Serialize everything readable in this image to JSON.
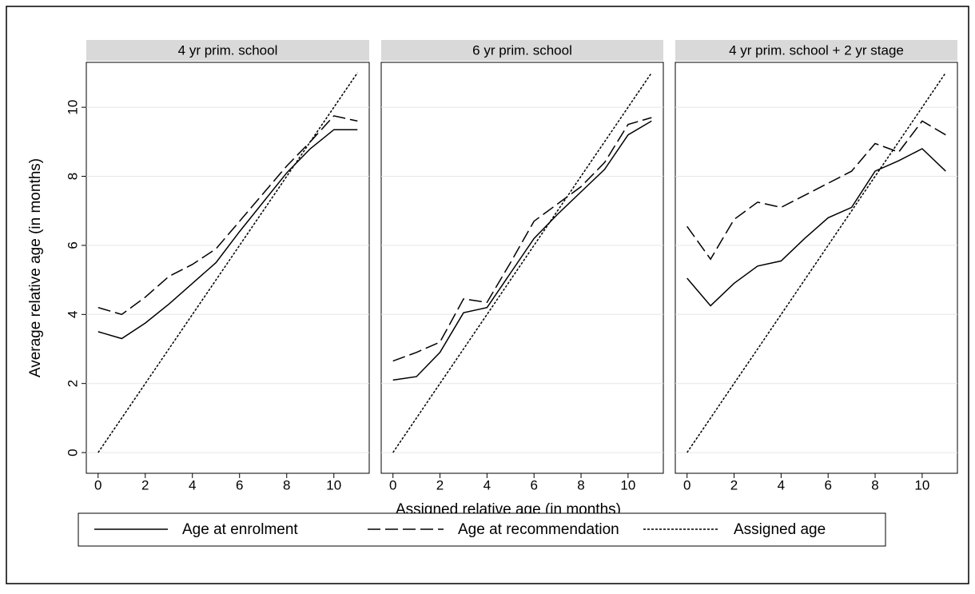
{
  "chart_data": [
    {
      "type": "line",
      "title": "4 yr prim. school",
      "ylabel": "Average relative age (in months)",
      "x": [
        0,
        1,
        2,
        3,
        4,
        5,
        6,
        7,
        8,
        9,
        10,
        11
      ],
      "xlim": [
        -0.5,
        11.5
      ],
      "xticks": [
        0,
        2,
        4,
        6,
        8,
        10
      ],
      "ylim": [
        -0.6,
        11.3
      ],
      "yticks": [
        0,
        2,
        4,
        6,
        8,
        10
      ],
      "grid": true,
      "series": [
        {
          "name": "Age at enrolment",
          "color": "#000000",
          "dash": "solid",
          "values": [
            3.5,
            3.3,
            3.75,
            4.3,
            4.9,
            5.5,
            6.4,
            7.25,
            8.1,
            8.8,
            9.35,
            9.35
          ]
        },
        {
          "name": "Age at recommendation",
          "color": "#000000",
          "dash": "long",
          "values": [
            4.2,
            4.0,
            4.5,
            5.1,
            5.45,
            5.9,
            6.7,
            7.5,
            8.3,
            9.0,
            9.75,
            9.6
          ]
        },
        {
          "name": "Assigned age",
          "color": "#000000",
          "dash": "short",
          "values": [
            0,
            1,
            2,
            3,
            4,
            5,
            6,
            7,
            8,
            9,
            10,
            11
          ]
        }
      ]
    },
    {
      "type": "line",
      "title": "6 yr prim. school",
      "xlabel": "Assigned relative age (in months)",
      "x": [
        0,
        1,
        2,
        3,
        4,
        5,
        6,
        7,
        8,
        9,
        10,
        11
      ],
      "xlim": [
        -0.5,
        11.5
      ],
      "xticks": [
        0,
        2,
        4,
        6,
        8,
        10
      ],
      "ylim": [
        -0.6,
        11.3
      ],
      "yticks": [
        0,
        2,
        4,
        6,
        8,
        10
      ],
      "grid": true,
      "series": [
        {
          "name": "Age at enrolment",
          "color": "#000000",
          "dash": "solid",
          "values": [
            2.1,
            2.2,
            2.9,
            4.05,
            4.2,
            5.2,
            6.2,
            6.9,
            7.55,
            8.2,
            9.2,
            9.6
          ]
        },
        {
          "name": "Age at recommendation",
          "color": "#000000",
          "dash": "long",
          "values": [
            2.65,
            2.9,
            3.2,
            4.45,
            4.35,
            5.5,
            6.7,
            7.2,
            7.7,
            8.4,
            9.5,
            9.7
          ]
        },
        {
          "name": "Assigned age",
          "color": "#000000",
          "dash": "short",
          "values": [
            0,
            1,
            2,
            3,
            4,
            5,
            6,
            7,
            8,
            9,
            10,
            11
          ]
        }
      ]
    },
    {
      "type": "line",
      "title": "4 yr prim. school + 2 yr stage",
      "x": [
        0,
        1,
        2,
        3,
        4,
        5,
        6,
        7,
        8,
        9,
        10,
        11
      ],
      "xlim": [
        -0.5,
        11.5
      ],
      "xticks": [
        0,
        2,
        4,
        6,
        8,
        10
      ],
      "ylim": [
        -0.6,
        11.3
      ],
      "yticks": [
        0,
        2,
        4,
        6,
        8,
        10
      ],
      "grid": true,
      "series": [
        {
          "name": "Age at enrolment",
          "color": "#000000",
          "dash": "solid",
          "values": [
            5.05,
            4.25,
            4.9,
            5.4,
            5.55,
            6.2,
            6.8,
            7.1,
            8.15,
            8.45,
            8.8,
            8.15
          ]
        },
        {
          "name": "Age at recommendation",
          "color": "#000000",
          "dash": "long",
          "values": [
            6.55,
            5.6,
            6.75,
            7.25,
            7.1,
            7.45,
            7.8,
            8.15,
            8.95,
            8.7,
            9.6,
            9.2
          ]
        },
        {
          "name": "Assigned age",
          "color": "#000000",
          "dash": "short",
          "values": [
            0,
            1,
            2,
            3,
            4,
            5,
            6,
            7,
            8,
            9,
            10,
            11
          ]
        }
      ]
    }
  ]
}
